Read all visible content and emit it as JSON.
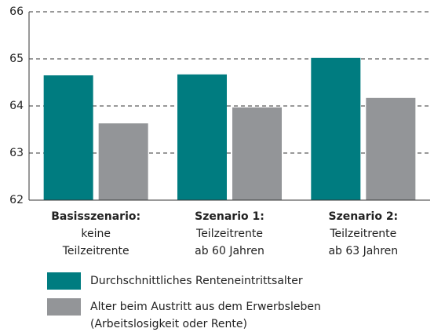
{
  "chart_data": {
    "type": "bar",
    "categories": [
      [
        "Basisszenario:",
        "keine",
        "Teilzeitrente"
      ],
      [
        "Szenario 1:",
        "Teilzeitrente",
        "ab 60 Jahren"
      ],
      [
        "Szenario 2:",
        "Teilzeitrente",
        "ab 63 Jahren"
      ]
    ],
    "series": [
      {
        "name": "Durchschnittliches Renteneintrittsalter",
        "color": "#007c80",
        "values": [
          64.65,
          64.67,
          65.02
        ]
      },
      {
        "name": "Alter beim Austritt aus dem Erwerbsleben (Arbeitslosigkeit oder Rente)",
        "color": "#939598",
        "values": [
          63.63,
          63.97,
          64.17
        ]
      }
    ],
    "ylim": [
      62,
      66
    ],
    "yticks": [
      62,
      63,
      64,
      65,
      66
    ],
    "grid": true
  }
}
